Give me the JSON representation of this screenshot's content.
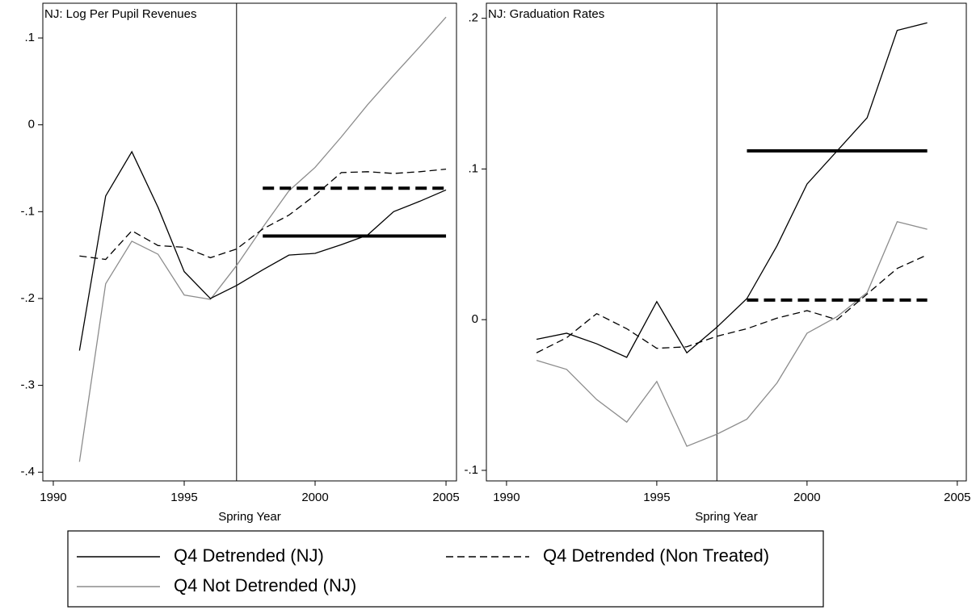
{
  "chart_data": [
    {
      "type": "line",
      "title": "NJ: Log Per Pupil Revenues",
      "x_label": "Spring Year",
      "x": [
        1991,
        1992,
        1993,
        1994,
        1995,
        1996,
        1997,
        1998,
        1999,
        2000,
        2001,
        2002,
        2003,
        2004,
        2005
      ],
      "series": [
        {
          "name": "Q4 Detrended (NJ)",
          "color": "#000000",
          "dash": false,
          "values": [
            -0.26,
            -0.082,
            -0.031,
            -0.095,
            -0.169,
            -0.2,
            -0.185,
            -0.167,
            -0.15,
            -0.148,
            -0.138,
            -0.127,
            -0.1,
            -0.088,
            -0.075
          ]
        },
        {
          "name": "Q4 Detrended (Non Treated)",
          "color": "#000000",
          "dash": true,
          "values": [
            -0.151,
            -0.155,
            -0.122,
            -0.139,
            -0.141,
            -0.153,
            -0.143,
            -0.12,
            -0.104,
            -0.081,
            -0.055,
            -0.054,
            -0.056,
            -0.054,
            -0.051
          ]
        },
        {
          "name": "Q4 Not Detrended (NJ)",
          "color": "#8c8c8c",
          "dash": false,
          "values": [
            -0.388,
            -0.183,
            -0.134,
            -0.149,
            -0.196,
            -0.201,
            -0.162,
            -0.118,
            -0.076,
            -0.049,
            -0.014,
            0.023,
            0.057,
            0.09,
            0.124
          ]
        }
      ],
      "hlines": [
        {
          "y": -0.128,
          "x0": 1998,
          "x1": 2005,
          "dash": false
        },
        {
          "y": -0.073,
          "x0": 1998,
          "x1": 2005,
          "dash": true
        }
      ],
      "vline": 1997,
      "xlim": [
        1989.6,
        2005.4
      ],
      "xticks": [
        1990,
        1995,
        2000,
        2005
      ],
      "ylim": [
        -0.41,
        0.14
      ],
      "yticks": [
        {
          "value": -0.4,
          "label": "-.4"
        },
        {
          "value": -0.3,
          "label": "-.3"
        },
        {
          "value": -0.2,
          "label": "-.2"
        },
        {
          "value": -0.1,
          "label": "-.1"
        },
        0,
        {
          "value": 0.1,
          "label": ".1"
        }
      ]
    },
    {
      "type": "line",
      "title": "NJ: Graduation Rates",
      "x_label": "Spring Year",
      "x": [
        1991,
        1992,
        1993,
        1994,
        1995,
        1996,
        1997,
        1998,
        1999,
        2000,
        2001,
        2002,
        2003,
        2004
      ],
      "series": [
        {
          "name": "Q4 Detrended (NJ)",
          "color": "#000000",
          "dash": false,
          "values": [
            -0.013,
            -0.009,
            -0.016,
            -0.025,
            0.012,
            -0.022,
            -0.005,
            0.014,
            0.049,
            0.09,
            0.112,
            0.134,
            0.192,
            0.197
          ]
        },
        {
          "name": "Q4 Detrended (Non Treated)",
          "color": "#000000",
          "dash": true,
          "values": [
            -0.022,
            -0.012,
            0.004,
            -0.006,
            -0.019,
            -0.018,
            -0.011,
            -0.006,
            0.001,
            0.006,
            0,
            0.017,
            0.034,
            0.043
          ]
        },
        {
          "name": "Q4 Not Detrended (NJ)",
          "color": "#8c8c8c",
          "dash": false,
          "values": [
            -0.027,
            -0.033,
            -0.053,
            -0.068,
            -0.041,
            -0.084,
            -0.076,
            -0.066,
            -0.042,
            -0.009,
            0.002,
            0.018,
            0.065,
            0.06
          ]
        }
      ],
      "hlines": [
        {
          "y": 0.112,
          "x0": 1998,
          "x1": 2004,
          "dash": false
        },
        {
          "y": 0.013,
          "x0": 1998,
          "x1": 2004,
          "dash": true
        }
      ],
      "vline": 1997,
      "xlim": [
        1989.33,
        2005.3
      ],
      "xticks": [
        1990,
        1995,
        2000,
        2005
      ],
      "ylim": [
        -0.107,
        0.21
      ],
      "yticks": [
        {
          "value": -0.1,
          "label": "-.1"
        },
        0,
        {
          "value": 0.1,
          "label": ".1"
        },
        {
          "value": 0.2,
          "label": ".2"
        }
      ]
    }
  ]
}
